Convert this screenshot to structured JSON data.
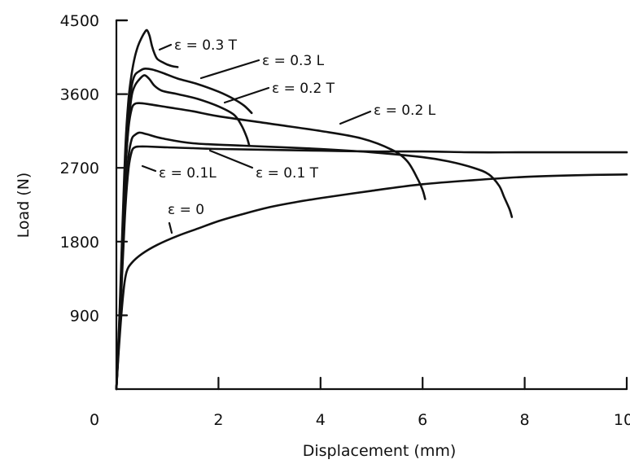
{
  "chart_data": {
    "type": "line",
    "title": "",
    "xlabel": "Displacement (mm)",
    "ylabel": "Load (N)",
    "xlim": [
      0,
      10
    ],
    "ylim": [
      0,
      4500
    ],
    "x_ticks": [
      0,
      2,
      4,
      6,
      8,
      10
    ],
    "y_ticks": [
      900,
      1800,
      2700,
      3600,
      4500
    ],
    "grid": false,
    "legend": "inline labels",
    "series": [
      {
        "name": "ε = 0",
        "x": [
          0,
          0.06,
          0.14,
          0.2,
          0.3,
          0.5,
          0.8,
          1.2,
          1.6,
          2.0,
          2.5,
          3.0,
          3.5,
          4.0,
          5.0,
          6.0,
          7.0,
          8.0,
          9.0,
          10.0
        ],
        "y": [
          0,
          600,
          1200,
          1430,
          1540,
          1650,
          1760,
          1870,
          1960,
          2050,
          2140,
          2220,
          2280,
          2330,
          2420,
          2500,
          2550,
          2590,
          2610,
          2620
        ]
      },
      {
        "name": "ε = 0.1 T",
        "x": [
          0,
          0.06,
          0.12,
          0.18,
          0.24,
          0.3,
          0.36,
          0.45,
          0.6,
          1.0,
          1.5,
          2.0,
          3.0,
          4.0,
          5.0,
          6.0,
          7.0,
          8.0,
          9.0,
          10.0
        ],
        "y": [
          0,
          700,
          1500,
          2250,
          2700,
          2900,
          2950,
          2960,
          2960,
          2950,
          2940,
          2930,
          2920,
          2910,
          2900,
          2900,
          2890,
          2890,
          2890,
          2890
        ]
      },
      {
        "name": "ε = 0.1L",
        "x": [
          0,
          0.06,
          0.12,
          0.18,
          0.24,
          0.3,
          0.36,
          0.45,
          0.6,
          0.9,
          1.5,
          2.5,
          4.0,
          5.0,
          6.0,
          6.5,
          7.0,
          7.3,
          7.5,
          7.6,
          7.7,
          7.75
        ],
        "y": [
          0,
          750,
          1600,
          2400,
          2850,
          3050,
          3100,
          3130,
          3110,
          3060,
          3000,
          2970,
          2930,
          2890,
          2830,
          2780,
          2700,
          2620,
          2480,
          2340,
          2200,
          2100
        ]
      },
      {
        "name": "ε = 0.2 L",
        "x": [
          0,
          0.06,
          0.12,
          0.18,
          0.24,
          0.3,
          0.36,
          0.45,
          0.6,
          1.0,
          1.5,
          2.0,
          3.0,
          4.0,
          4.8,
          5.4,
          5.7,
          5.9,
          6.0,
          6.05
        ],
        "y": [
          0,
          800,
          1800,
          2700,
          3200,
          3420,
          3480,
          3490,
          3480,
          3440,
          3390,
          3330,
          3240,
          3150,
          3060,
          2920,
          2780,
          2570,
          2430,
          2320
        ]
      },
      {
        "name": "ε = 0.2 T",
        "x": [
          0,
          0.06,
          0.12,
          0.18,
          0.24,
          0.3,
          0.36,
          0.45,
          0.55,
          0.65,
          0.75,
          0.9,
          1.2,
          1.6,
          2.0,
          2.3,
          2.45,
          2.55,
          2.6
        ],
        "y": [
          0,
          800,
          1800,
          2700,
          3250,
          3580,
          3700,
          3780,
          3830,
          3780,
          3700,
          3640,
          3600,
          3540,
          3450,
          3350,
          3220,
          3080,
          2980
        ]
      },
      {
        "name": "ε = 0.3L",
        "x": [
          0,
          0.06,
          0.12,
          0.18,
          0.24,
          0.3,
          0.36,
          0.45,
          0.55,
          0.7,
          0.9,
          1.2,
          1.6,
          2.0,
          2.3,
          2.5,
          2.65
        ],
        "y": [
          0,
          850,
          1900,
          2900,
          3400,
          3700,
          3830,
          3880,
          3910,
          3900,
          3860,
          3790,
          3720,
          3630,
          3540,
          3460,
          3370
        ]
      },
      {
        "name": "ε = 0.3 T",
        "x": [
          0,
          0.06,
          0.12,
          0.18,
          0.24,
          0.3,
          0.36,
          0.42,
          0.48,
          0.55,
          0.6,
          0.65,
          0.7,
          0.75,
          0.8,
          0.9,
          1.0,
          1.1,
          1.2
        ],
        "y": [
          0,
          900,
          2000,
          3000,
          3550,
          3850,
          4050,
          4180,
          4270,
          4350,
          4380,
          4310,
          4180,
          4090,
          4030,
          3990,
          3960,
          3940,
          3930
        ]
      }
    ]
  },
  "labels": {
    "x_zero": "0",
    "e_03T": "ε = 0.3 T",
    "e_03L": "ε = 0.3 L",
    "e_02T": "ε = 0.2 T",
    "e_02L": "ε = 0.2 L",
    "e_01L": "ε = 0.1L",
    "e_01T": "ε = 0.1 T",
    "e_0": "ε = 0"
  }
}
